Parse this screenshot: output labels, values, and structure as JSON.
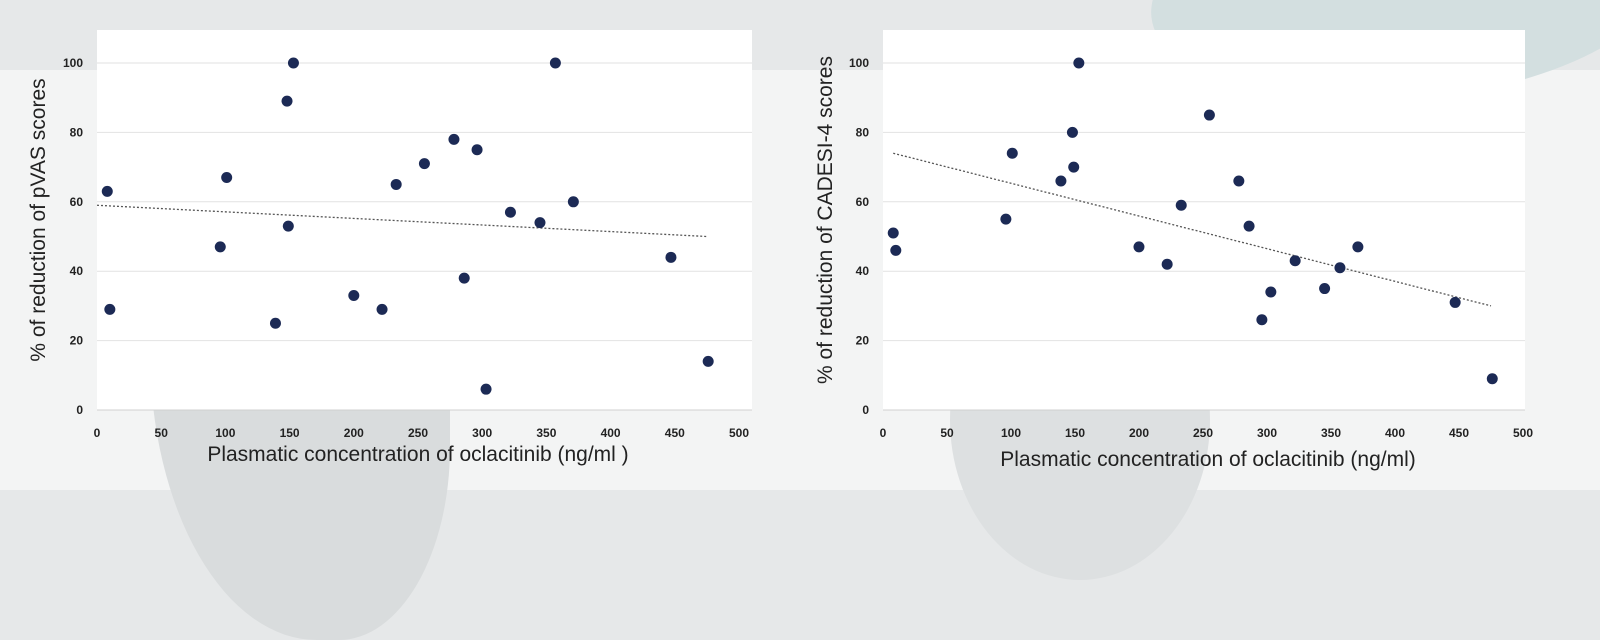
{
  "chart_data": [
    {
      "type": "scatter",
      "title": "",
      "xlabel": "Plasmatic concentration of oclacitinib (ng/ml )",
      "ylabel": "% of reduction of pVAS scores",
      "xlim": [
        0,
        500
      ],
      "ylim": [
        0,
        110
      ],
      "xticks": [
        "0",
        "50",
        "100",
        "150",
        "200",
        "250",
        "300",
        "350",
        "400",
        "450",
        "500"
      ],
      "yticks": [
        "0",
        "20",
        "40",
        "60",
        "80",
        "100"
      ],
      "grid": "horizontal",
      "marker_color": "#1c2a55",
      "trendline": {
        "style": "dotted",
        "x": [
          0,
          475
        ],
        "y": [
          59,
          50
        ]
      },
      "points": [
        {
          "x": 8,
          "y": 63
        },
        {
          "x": 10,
          "y": 29
        },
        {
          "x": 96,
          "y": 47
        },
        {
          "x": 101,
          "y": 67
        },
        {
          "x": 139,
          "y": 25
        },
        {
          "x": 148,
          "y": 89
        },
        {
          "x": 149,
          "y": 53
        },
        {
          "x": 153,
          "y": 100
        },
        {
          "x": 200,
          "y": 33
        },
        {
          "x": 222,
          "y": 29
        },
        {
          "x": 233,
          "y": 65
        },
        {
          "x": 255,
          "y": 71
        },
        {
          "x": 278,
          "y": 78
        },
        {
          "x": 286,
          "y": 38
        },
        {
          "x": 296,
          "y": 75
        },
        {
          "x": 303,
          "y": 6
        },
        {
          "x": 322,
          "y": 57
        },
        {
          "x": 345,
          "y": 54
        },
        {
          "x": 357,
          "y": 100
        },
        {
          "x": 371,
          "y": 60
        },
        {
          "x": 447,
          "y": 44
        },
        {
          "x": 476,
          "y": 14
        }
      ]
    },
    {
      "type": "scatter",
      "title": "",
      "xlabel": "Plasmatic concentration of oclacitinib (ng/ml)",
      "ylabel": "% of reduction of CADESI-4 scores",
      "xlim": [
        0,
        500
      ],
      "ylim": [
        0,
        110
      ],
      "xticks": [
        "0",
        "50",
        "100",
        "150",
        "200",
        "250",
        "300",
        "350",
        "400",
        "450",
        "500"
      ],
      "yticks": [
        "0",
        "20",
        "40",
        "60",
        "80",
        "100"
      ],
      "grid": "horizontal",
      "marker_color": "#1c2a55",
      "trendline": {
        "style": "dotted",
        "x": [
          8,
          475
        ],
        "y": [
          74,
          30
        ]
      },
      "points": [
        {
          "x": 8,
          "y": 51
        },
        {
          "x": 10,
          "y": 46
        },
        {
          "x": 96,
          "y": 55
        },
        {
          "x": 101,
          "y": 74
        },
        {
          "x": 139,
          "y": 66
        },
        {
          "x": 148,
          "y": 80
        },
        {
          "x": 149,
          "y": 70
        },
        {
          "x": 153,
          "y": 100
        },
        {
          "x": 200,
          "y": 47
        },
        {
          "x": 222,
          "y": 42
        },
        {
          "x": 233,
          "y": 59
        },
        {
          "x": 255,
          "y": 85
        },
        {
          "x": 278,
          "y": 66
        },
        {
          "x": 286,
          "y": 53
        },
        {
          "x": 296,
          "y": 26
        },
        {
          "x": 303,
          "y": 34
        },
        {
          "x": 322,
          "y": 43
        },
        {
          "x": 345,
          "y": 35
        },
        {
          "x": 357,
          "y": 41
        },
        {
          "x": 371,
          "y": 47
        },
        {
          "x": 447,
          "y": 31
        },
        {
          "x": 476,
          "y": 9
        }
      ]
    }
  ]
}
